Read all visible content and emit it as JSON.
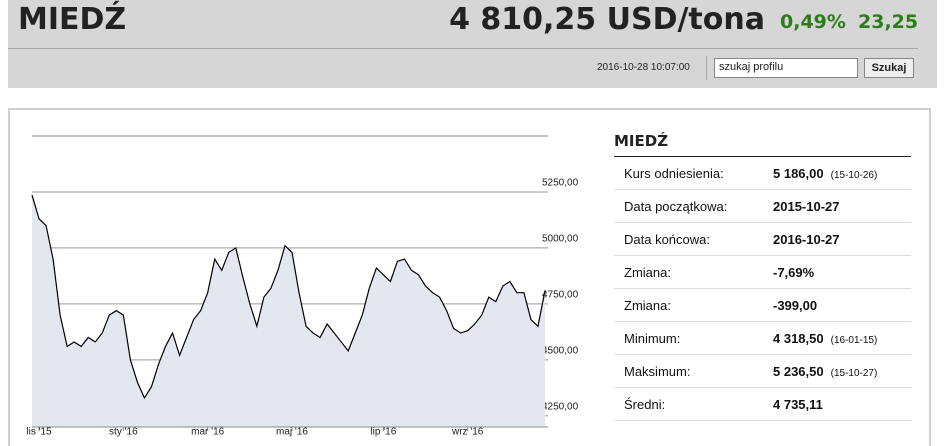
{
  "header": {
    "title": "MIEDŹ",
    "price": "4 810,25 USD/tona",
    "change_pct": "0,49%",
    "change_abs": "23,25",
    "timestamp": "2016-10-28 10:07:00",
    "search_placeholder": "szukaj profilu",
    "search_button": "Szukaj"
  },
  "stats": {
    "title": "MIEDŹ",
    "rows": [
      {
        "label": "Kurs odniesienia:",
        "value": "5 186,00",
        "date": "(15-10-26)"
      },
      {
        "label": "Data początkowa:",
        "value": "2015-10-27"
      },
      {
        "label": "Data końcowa:",
        "value": "2016-10-27"
      },
      {
        "label": "Zmiana:",
        "value": "-7,69%"
      },
      {
        "label": "Zmiana:",
        "value": "-399,00"
      },
      {
        "label": "Minimum:",
        "value": "4 318,50",
        "date": "(16-01-15)"
      },
      {
        "label": "Maksimum:",
        "value": "5 236,50",
        "date": "(15-10-27)"
      },
      {
        "label": "Średni:",
        "value": "4 735,11"
      }
    ]
  },
  "chart_data": {
    "type": "area",
    "color": "#000000",
    "fill": "#e4e7f0",
    "categories": [
      null,
      "lis '15",
      null,
      null,
      null,
      null,
      null,
      null,
      null,
      null,
      null,
      null,
      null,
      "sty '16",
      null,
      null,
      null,
      null,
      null,
      null,
      null,
      null,
      null,
      null,
      null,
      "mar '16",
      null,
      null,
      null,
      null,
      null,
      null,
      null,
      null,
      null,
      null,
      null,
      "maj '16",
      null,
      null,
      null,
      null,
      null,
      null,
      null,
      null,
      null,
      null,
      null,
      null,
      "lip '16",
      null,
      null,
      null,
      null,
      null,
      null,
      null,
      null,
      null,
      null,
      null,
      "wrz '16",
      null,
      null,
      null,
      null,
      null,
      null,
      null,
      null,
      null,
      null,
      null
    ],
    "values": [
      5236,
      5130,
      5100,
      4950,
      4700,
      4560,
      4580,
      4560,
      4600,
      4580,
      4620,
      4700,
      4720,
      4700,
      4500,
      4400,
      4330,
      4380,
      4480,
      4560,
      4620,
      4520,
      4600,
      4680,
      4720,
      4800,
      4950,
      4900,
      4980,
      5000,
      4870,
      4750,
      4650,
      4780,
      4820,
      4900,
      5010,
      4980,
      4800,
      4650,
      4620,
      4600,
      4660,
      4620,
      4580,
      4540,
      4620,
      4700,
      4820,
      4910,
      4880,
      4850,
      4940,
      4950,
      4900,
      4880,
      4830,
      4800,
      4780,
      4720,
      4640,
      4620,
      4630,
      4660,
      4700,
      4780,
      4760,
      4830,
      4850,
      4800,
      4800,
      4680,
      4650,
      4810
    ],
    "ylim": [
      4200,
      5500
    ],
    "yticks": [
      {
        "value": 4250,
        "label": "4250,00"
      },
      {
        "value": 4500,
        "label": "4500,00"
      },
      {
        "value": 4750,
        "label": "4750,00"
      },
      {
        "value": 5000,
        "label": "5000,00"
      },
      {
        "value": 5250,
        "label": "5250,00"
      }
    ],
    "grid": true
  }
}
